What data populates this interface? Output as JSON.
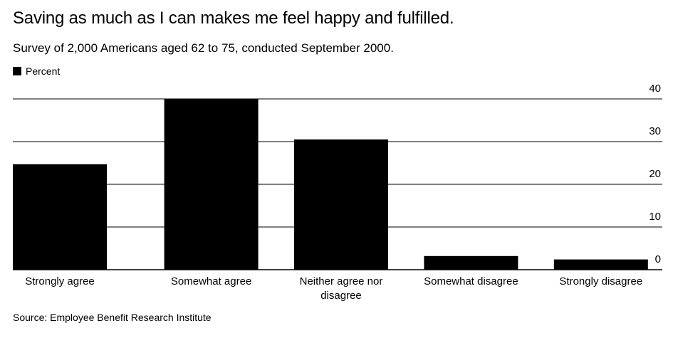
{
  "title": "Saving as much as I can makes me feel happy and fulfilled.",
  "subtitle": "Survey of 2,000 Americans aged 62 to 75, conducted September 2000.",
  "legend_label": "Percent",
  "source": "Source: Employee Benefit Research Institute",
  "colors": {
    "bar": "#000000",
    "grid": "#000000",
    "background": "#ffffff"
  },
  "chart_data": {
    "type": "bar",
    "categories": [
      [
        "Strongly agree"
      ],
      [
        "Somewhat agree"
      ],
      [
        "Neither agree nor",
        "disagree"
      ],
      [
        "Somewhat disagree"
      ],
      [
        "Strongly disagree"
      ]
    ],
    "series": [
      {
        "name": "Percent",
        "values": [
          24.7,
          40,
          30.5,
          3.2,
          2.4
        ]
      }
    ],
    "yticks": [
      0,
      10,
      20,
      30,
      40
    ],
    "ylim": [
      0,
      40
    ],
    "y_axis_side": "right",
    "grid": true,
    "legend": "top-left"
  }
}
